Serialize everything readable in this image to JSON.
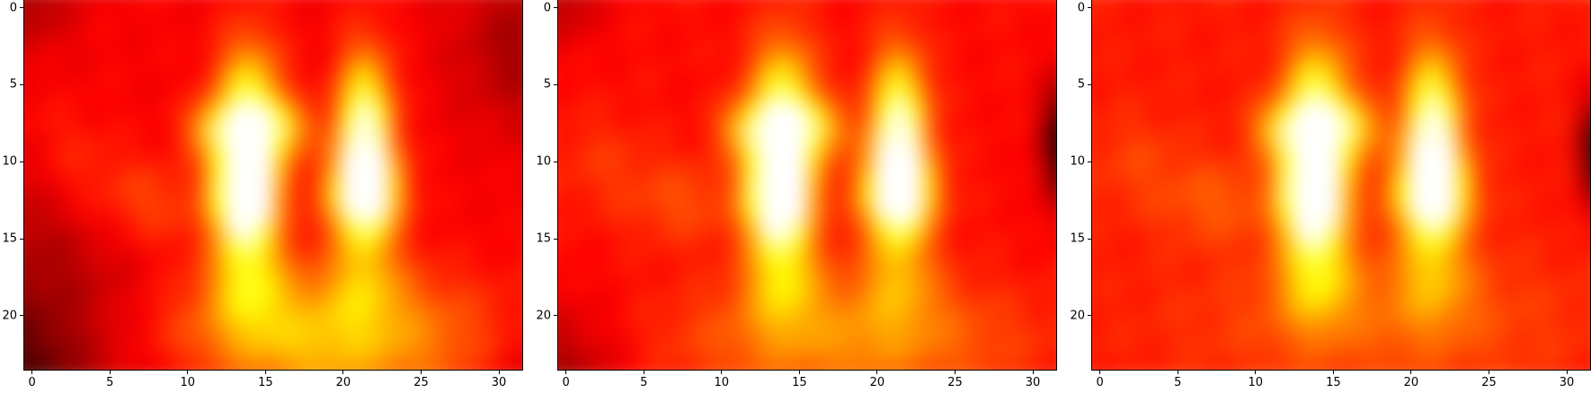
{
  "chart_data": [
    {
      "type": "heatmap",
      "title": "",
      "xlabel": "",
      "ylabel": "",
      "colormap": "hot",
      "xlim": [
        -0.5,
        31.5
      ],
      "ylim": [
        23.5,
        -0.5
      ],
      "x_ticks": [
        "0",
        "5",
        "10",
        "15",
        "20",
        "25",
        "30"
      ],
      "y_ticks": [
        "0",
        "5",
        "10",
        "15",
        "20"
      ],
      "x_tick_values": [
        0,
        5,
        10,
        15,
        20,
        25,
        30
      ],
      "y_tick_values": [
        0,
        5,
        10,
        15,
        20
      ],
      "grid": false,
      "hotspots": [
        {
          "x": 14,
          "y": 8.5,
          "value": 1.0
        },
        {
          "x": 21,
          "y": 9.0,
          "value": 1.0
        }
      ],
      "regions": [
        {
          "description": "warm lower-middle area",
          "x": 18,
          "y": 20,
          "value": 0.68
        },
        {
          "description": "dark top-left corner",
          "x": 0,
          "y": 0,
          "value": 0.15
        },
        {
          "description": "dark bottom-left corner",
          "x": 0,
          "y": 23,
          "value": 0.15
        }
      ]
    },
    {
      "type": "heatmap",
      "title": "",
      "xlabel": "",
      "ylabel": "",
      "colormap": "hot",
      "xlim": [
        -0.5,
        31.5
      ],
      "ylim": [
        23.5,
        -0.5
      ],
      "x_ticks": [
        "0",
        "5",
        "10",
        "15",
        "20",
        "25",
        "30"
      ],
      "y_ticks": [
        "0",
        "5",
        "10",
        "15",
        "20"
      ],
      "x_tick_values": [
        0,
        5,
        10,
        15,
        20,
        25,
        30
      ],
      "y_tick_values": [
        0,
        5,
        10,
        15,
        20
      ],
      "grid": false,
      "hotspots": [
        {
          "x": 14,
          "y": 8.5,
          "value": 1.0
        },
        {
          "x": 21,
          "y": 9.0,
          "value": 1.0
        }
      ],
      "regions": [
        {
          "description": "dark right-edge patch",
          "x": 31,
          "y": 9,
          "value": 0.05
        },
        {
          "description": "dark top-left corner",
          "x": 0,
          "y": 0,
          "value": 0.18
        }
      ]
    },
    {
      "type": "heatmap",
      "title": "",
      "xlabel": "",
      "ylabel": "",
      "colormap": "hot",
      "xlim": [
        -0.5,
        31.5
      ],
      "ylim": [
        23.5,
        -0.5
      ],
      "x_ticks": [
        "0",
        "5",
        "10",
        "15",
        "20",
        "25",
        "30"
      ],
      "y_ticks": [
        "0",
        "5",
        "10",
        "15",
        "20"
      ],
      "x_tick_values": [
        0,
        5,
        10,
        15,
        20,
        25,
        30
      ],
      "y_tick_values": [
        0,
        5,
        10,
        15,
        20
      ],
      "grid": false,
      "hotspots": [
        {
          "x": 14,
          "y": 8.5,
          "value": 1.0
        },
        {
          "x": 21,
          "y": 9.0,
          "value": 1.0
        }
      ],
      "regions": [
        {
          "description": "dark right-edge patch",
          "x": 31,
          "y": 9,
          "value": 0.03
        }
      ]
    }
  ]
}
